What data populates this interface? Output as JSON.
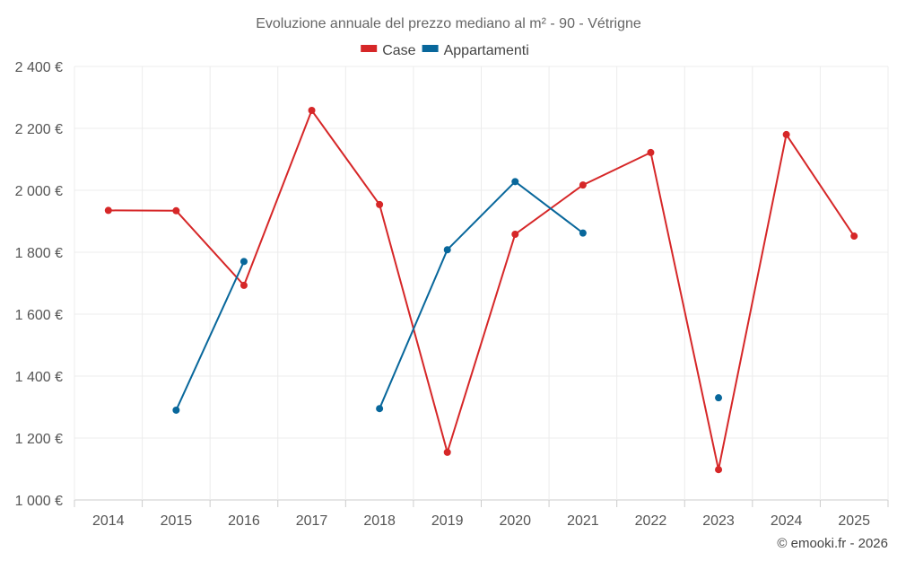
{
  "chart_data": {
    "type": "line",
    "title": "Evoluzione annuale del prezzo mediano al m² - 90 - Vétrigne",
    "categories": [
      "2014",
      "2015",
      "2016",
      "2017",
      "2018",
      "2019",
      "2020",
      "2021",
      "2022",
      "2023",
      "2024",
      "2025"
    ],
    "ylim": [
      1000,
      2400
    ],
    "yticks": [
      1000,
      1200,
      1400,
      1600,
      1800,
      2000,
      2200,
      2400
    ],
    "ytick_labels": [
      "1 000 €",
      "1 200 €",
      "1 400 €",
      "1 600 €",
      "1 800 €",
      "2 000 €",
      "2 200 €",
      "2 400 €"
    ],
    "xlabel": "",
    "ylabel": "",
    "grid": true,
    "legend_position": "top-center",
    "series": [
      {
        "name": "Case",
        "color": "#d62728",
        "values": [
          1935,
          1934,
          1693,
          2258,
          1954,
          1154,
          1858,
          2017,
          2122,
          1098,
          2180,
          1852
        ]
      },
      {
        "name": "Appartamenti",
        "color": "#08679b",
        "values": [
          null,
          1290,
          1770,
          null,
          1295,
          1808,
          2028,
          1862,
          null,
          1330,
          null,
          null
        ]
      }
    ]
  },
  "credit": "© emooki.fr - 2026"
}
